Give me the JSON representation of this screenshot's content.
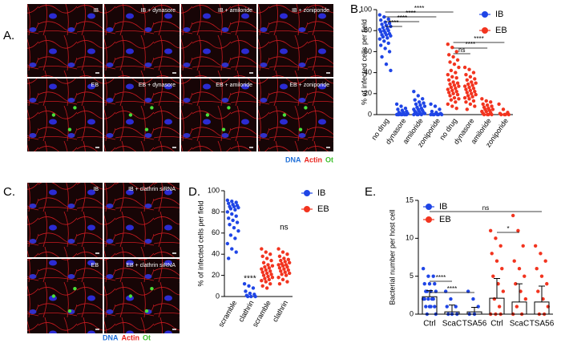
{
  "panel_labels": [
    "A.",
    "B.",
    "C.",
    "D.",
    "E."
  ],
  "image_panels": [
    {
      "captions": [
        "IB",
        "IB + dynasore",
        "IB + amiloride",
        "IB + zoniporide",
        "EB",
        "EB + dynasore",
        "EB + amiloride",
        "EB + zoniporide"
      ],
      "stain_legend": [
        "DNA",
        "Actin",
        "Ot"
      ]
    },
    {
      "captions": [
        "IB",
        "IB + clathrin siRNA",
        "EB",
        "EB + clathrin siRNA"
      ],
      "stain_legend": [
        "DNA",
        "Actin",
        "Ot"
      ]
    }
  ],
  "chart_data": [
    {
      "type": "strip",
      "y_label": "% of infected cells per field",
      "ylim": [
        0,
        100
      ],
      "yticks": [
        0,
        20,
        40,
        60,
        80,
        100
      ],
      "series": [
        {
          "name": "IB",
          "color": "#1f45e6",
          "categories": [
            "no drug",
            "dynasore",
            "amiloride",
            "zoniporide"
          ],
          "values": [
            [
              95,
              93,
              91,
              90,
              88,
              87,
              86,
              85,
              84,
              83,
              82,
              81,
              80,
              80,
              79,
              78,
              77,
              76,
              76,
              75,
              74,
              73,
              72,
              70,
              68,
              66,
              63,
              60,
              55,
              48,
              42
            ],
            [
              10,
              8,
              6,
              5,
              4,
              3,
              2,
              2,
              1,
              1,
              0,
              0,
              0,
              0,
              0,
              0,
              0,
              0
            ],
            [
              22,
              18,
              15,
              14,
              12,
              11,
              10,
              9,
              8,
              7,
              6,
              5,
              5,
              4,
              3,
              3,
              2,
              2,
              1,
              1,
              0,
              0,
              0,
              0
            ],
            [
              10,
              8,
              5,
              3,
              2,
              1,
              0,
              0,
              0,
              0,
              0,
              0
            ]
          ]
        },
        {
          "name": "EB",
          "color": "#f2341f",
          "categories": [
            "no drug",
            "dynasore",
            "amiloride",
            "zoniporide"
          ],
          "values": [
            [
              67,
              64,
              60,
              57,
              55,
              52,
              50,
              48,
              45,
              42,
              40,
              38,
              36,
              35,
              33,
              31,
              30,
              29,
              28,
              27,
              26,
              25,
              24,
              23,
              22,
              21,
              20,
              19,
              18,
              16,
              15,
              14,
              12,
              10,
              8,
              6
            ],
            [
              45,
              43,
              40,
              38,
              36,
              34,
              33,
              31,
              30,
              29,
              28,
              27,
              26,
              25,
              24,
              23,
              22,
              21,
              20,
              19,
              18,
              17,
              16,
              15,
              13,
              12,
              10,
              8,
              5
            ],
            [
              15,
              13,
              12,
              10,
              9,
              8,
              7,
              6,
              5,
              5,
              4,
              3,
              3,
              2,
              1,
              0,
              0,
              0,
              0
            ],
            [
              10,
              5,
              2,
              1,
              0,
              0,
              0,
              0
            ]
          ]
        }
      ],
      "significance": [
        "****",
        "****",
        "****",
        "****",
        "****",
        "****",
        "ns"
      ]
    },
    {
      "type": "strip",
      "y_label": "% of infected cells per field",
      "ylim": [
        0,
        100
      ],
      "yticks": [
        0,
        20,
        40,
        60,
        80,
        100
      ],
      "series": [
        {
          "name": "IB",
          "color": "#1f45e6",
          "categories": [
            "scramble",
            "clathrin"
          ],
          "values": [
            [
              91,
              90,
              89,
              88,
              87,
              86,
              85,
              85,
              84,
              83,
              82,
              80,
              78,
              76,
              74,
              72,
              70,
              68,
              65,
              62,
              58,
              55,
              50,
              45,
              42,
              36
            ],
            [
              12,
              10,
              8,
              5,
              3,
              2,
              1,
              0,
              0,
              0
            ]
          ]
        },
        {
          "name": "EB",
          "color": "#f2341f",
          "categories": [
            "scramble",
            "clathrin"
          ],
          "values": [
            [
              45,
              42,
              40,
              38,
              36,
              34,
              32,
              30,
              29,
              28,
              27,
              26,
              25,
              24,
              23,
              22,
              21,
              20,
              19,
              18,
              17,
              16,
              15,
              14,
              12,
              10,
              8
            ],
            [
              45,
              42,
              40,
              38,
              36,
              35,
              34,
              33,
              32,
              31,
              30,
              30,
              29,
              28,
              27,
              26,
              25,
              24,
              23,
              22,
              21,
              20,
              18,
              16,
              14,
              12
            ]
          ]
        }
      ],
      "annotations": [
        "****",
        "ns"
      ]
    },
    {
      "type": "bar",
      "y_label": "Bacterial number per host cell",
      "ylim": [
        0,
        15
      ],
      "yticks": [
        0,
        5,
        10,
        15
      ],
      "series": [
        {
          "name": "IB",
          "color": "#1f45e6",
          "categories": [
            "Ctrl",
            "ScaC",
            "TSA56"
          ],
          "values": [
            2.3,
            0.3,
            0.3
          ],
          "errors": [
            0.8,
            0.9,
            0.6
          ],
          "points": [
            [
              6,
              5,
              5,
              4,
              4,
              4,
              3,
              3,
              3,
              3,
              2,
              2,
              2,
              2,
              2,
              1,
              1,
              1,
              1,
              0,
              0
            ],
            [
              3,
              2,
              1,
              1,
              0,
              0,
              0
            ],
            [
              3,
              2,
              1,
              0,
              0
            ]
          ]
        },
        {
          "name": "EB",
          "color": "#f2341f",
          "categories": [
            "Ctrl",
            "ScaC",
            "TSA56"
          ],
          "values": [
            2.1,
            1.6,
            1.6
          ],
          "errors": [
            2.6,
            2.4,
            2.1
          ],
          "points": [
            [
              11,
              10,
              9,
              8,
              7,
              6,
              5,
              4,
              3,
              2,
              1,
              0,
              0,
              0
            ],
            [
              13,
              11,
              9,
              7,
              6,
              5,
              4,
              3,
              2,
              1,
              0,
              0
            ],
            [
              9,
              8,
              7,
              6,
              5,
              4,
              3,
              2,
              1,
              0,
              0
            ]
          ]
        }
      ],
      "significance": [
        "****",
        "****",
        "ns",
        "*"
      ]
    }
  ]
}
